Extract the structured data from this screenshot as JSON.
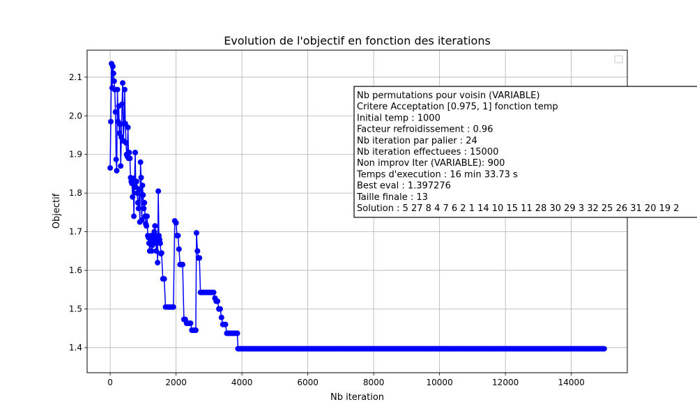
{
  "chart_data": {
    "type": "line",
    "title": "Evolution de l'objectif en fonction des iterations",
    "xlabel": "Nb iteration",
    "ylabel": "Objectif",
    "xlim": [
      -700,
      15700
    ],
    "ylim": [
      1.335,
      2.17
    ],
    "xticks": [
      0,
      2000,
      4000,
      6000,
      8000,
      10000,
      12000,
      14000
    ],
    "yticks": [
      1.4,
      1.5,
      1.6,
      1.7,
      1.8,
      1.9,
      2.0,
      2.1
    ],
    "grid": true,
    "legend": {
      "placement": "top-right",
      "entries": []
    },
    "series": [
      {
        "color": "#0000ff",
        "marker": "circle",
        "points": [
          [
            0,
            1.865
          ],
          [
            20,
            1.985
          ],
          [
            40,
            2.135
          ],
          [
            60,
            2.072
          ],
          [
            80,
            2.128
          ],
          [
            100,
            2.11
          ],
          [
            120,
            2.09
          ],
          [
            140,
            2.068
          ],
          [
            160,
            2.01
          ],
          [
            180,
            1.887
          ],
          [
            200,
            1.858
          ],
          [
            220,
            2.068
          ],
          [
            240,
            1.985
          ],
          [
            260,
            2.025
          ],
          [
            280,
            1.955
          ],
          [
            300,
            1.978
          ],
          [
            320,
            1.87
          ],
          [
            340,
            1.945
          ],
          [
            360,
            2.03
          ],
          [
            380,
            2.085
          ],
          [
            400,
            1.935
          ],
          [
            420,
            1.98
          ],
          [
            440,
            2.068
          ],
          [
            460,
            1.98
          ],
          [
            480,
            1.93
          ],
          [
            500,
            1.9
          ],
          [
            520,
            1.895
          ],
          [
            540,
            1.97
          ],
          [
            560,
            1.89
          ],
          [
            580,
            1.905
          ],
          [
            600,
            1.89
          ],
          [
            620,
            1.84
          ],
          [
            640,
            1.83
          ],
          [
            660,
            1.825
          ],
          [
            680,
            1.79
          ],
          [
            700,
            1.838
          ],
          [
            720,
            1.74
          ],
          [
            740,
            1.83
          ],
          [
            760,
            1.905
          ],
          [
            780,
            1.815
          ],
          [
            800,
            1.83
          ],
          [
            820,
            1.8
          ],
          [
            840,
            1.775
          ],
          [
            860,
            1.76
          ],
          [
            880,
            1.81
          ],
          [
            900,
            1.725
          ],
          [
            920,
            1.88
          ],
          [
            940,
            1.84
          ],
          [
            960,
            1.73
          ],
          [
            980,
            1.82
          ],
          [
            1000,
            1.795
          ],
          [
            1020,
            1.76
          ],
          [
            1040,
            1.775
          ],
          [
            1060,
            1.74
          ],
          [
            1080,
            1.72
          ],
          [
            1100,
            1.715
          ],
          [
            1120,
            1.74
          ],
          [
            1140,
            1.69
          ],
          [
            1160,
            1.685
          ],
          [
            1180,
            1.67
          ],
          [
            1200,
            1.65
          ],
          [
            1220,
            1.68
          ],
          [
            1240,
            1.69
          ],
          [
            1260,
            1.65
          ],
          [
            1280,
            1.665
          ],
          [
            1300,
            1.69
          ],
          [
            1320,
            1.67
          ],
          [
            1340,
            1.7
          ],
          [
            1360,
            1.715
          ],
          [
            1380,
            1.69
          ],
          [
            1400,
            1.65
          ],
          [
            1420,
            1.68
          ],
          [
            1440,
            1.62
          ],
          [
            1460,
            1.805
          ],
          [
            1480,
            1.69
          ],
          [
            1500,
            1.68
          ],
          [
            1520,
            1.67
          ],
          [
            1540,
            1.643
          ],
          [
            1560,
            1.645
          ],
          [
            1600,
            1.578
          ],
          [
            1640,
            1.578
          ],
          [
            1680,
            1.505
          ],
          [
            1720,
            1.505
          ],
          [
            1760,
            1.505
          ],
          [
            1800,
            1.505
          ],
          [
            1840,
            1.505
          ],
          [
            1880,
            1.505
          ],
          [
            1920,
            1.505
          ],
          [
            1960,
            1.728
          ],
          [
            2000,
            1.723
          ],
          [
            2030,
            1.69
          ],
          [
            2060,
            1.69
          ],
          [
            2090,
            1.655
          ],
          [
            2120,
            1.615
          ],
          [
            2160,
            1.615
          ],
          [
            2200,
            1.615
          ],
          [
            2240,
            1.473
          ],
          [
            2280,
            1.473
          ],
          [
            2320,
            1.463
          ],
          [
            2360,
            1.463
          ],
          [
            2400,
            1.463
          ],
          [
            2440,
            1.463
          ],
          [
            2480,
            1.445
          ],
          [
            2520,
            1.445
          ],
          [
            2560,
            1.445
          ],
          [
            2600,
            1.445
          ],
          [
            2620,
            1.697
          ],
          [
            2650,
            1.65
          ],
          [
            2680,
            1.632
          ],
          [
            2710,
            1.632
          ],
          [
            2740,
            1.543
          ],
          [
            2780,
            1.543
          ],
          [
            2820,
            1.543
          ],
          [
            2860,
            1.543
          ],
          [
            2900,
            1.543
          ],
          [
            2940,
            1.543
          ],
          [
            2980,
            1.543
          ],
          [
            3020,
            1.543
          ],
          [
            3060,
            1.543
          ],
          [
            3100,
            1.543
          ],
          [
            3140,
            1.543
          ],
          [
            3180,
            1.528
          ],
          [
            3220,
            1.52
          ],
          [
            3260,
            1.52
          ],
          [
            3300,
            1.5
          ],
          [
            3340,
            1.5
          ],
          [
            3380,
            1.478
          ],
          [
            3420,
            1.46
          ],
          [
            3460,
            1.46
          ],
          [
            3500,
            1.46
          ],
          [
            3540,
            1.437
          ],
          [
            3580,
            1.437
          ],
          [
            3620,
            1.437
          ],
          [
            3660,
            1.437
          ],
          [
            3700,
            1.437
          ],
          [
            3740,
            1.437
          ],
          [
            3780,
            1.437
          ],
          [
            3820,
            1.437
          ],
          [
            3860,
            1.437
          ],
          [
            3880,
            1.397
          ],
          [
            15000,
            1.397
          ]
        ]
      }
    ],
    "annotation": [
      "Nb permutations pour voisin (VARIABLE)",
      "Critere Acceptation [0.975, 1] fonction temp",
      "Initial temp : 1000",
      "Facteur refroidissement : 0.96",
      "Nb iteration par palier : 24",
      "Nb iteration effectuees : 15000",
      "Non improv Iter (VARIABLE): 900",
      "Temps d'execution : 16 min 33.73 s",
      "Best eval : 1.397276",
      "Taille finale : 13",
      "Solution : 5 27 8 4 7 6 2 1 14 10 15 11 28 30 29 3 32 25 26 31 20 19 2"
    ]
  }
}
